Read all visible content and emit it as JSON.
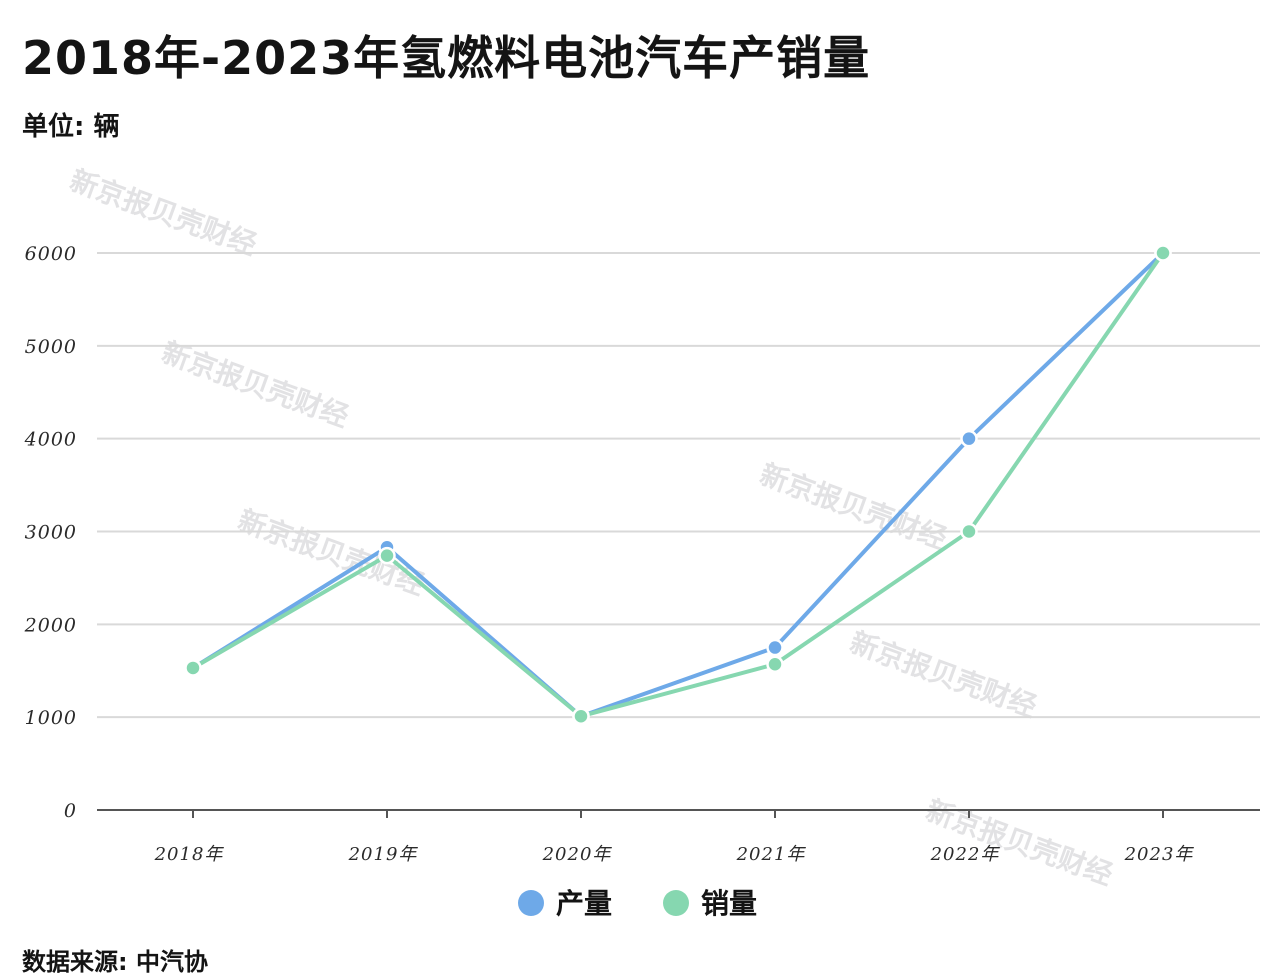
{
  "header": {
    "title": "2018年-2023年氢燃料电池汽车产销量",
    "unit": "单位: 辆"
  },
  "footer": {
    "source": "数据来源: 中汽协"
  },
  "watermark": {
    "text": "新京报贝壳财经"
  },
  "colors": {
    "production": "#6ea9e8",
    "sales": "#86d7b0",
    "grid": "#d9d9d9",
    "axis": "#555555"
  },
  "chart_data": {
    "type": "line",
    "title": "2018年-2023年氢燃料电池汽车产销量",
    "ylabel": "单位: 辆",
    "xlabel": "",
    "categories": [
      "2018年",
      "2019年",
      "2020年",
      "2021年",
      "2022年",
      "2023年"
    ],
    "series": [
      {
        "name": "产量",
        "values": [
          1530,
          2830,
          1010,
          1750,
          4000,
          6000
        ]
      },
      {
        "name": "销量",
        "values": [
          1530,
          2740,
          1010,
          1570,
          3000,
          6000
        ]
      }
    ],
    "ylim": [
      0,
      6000
    ],
    "yticks": [
      0,
      1000,
      2000,
      3000,
      4000,
      5000,
      6000
    ],
    "grid": true,
    "legend": "bottom-center"
  }
}
